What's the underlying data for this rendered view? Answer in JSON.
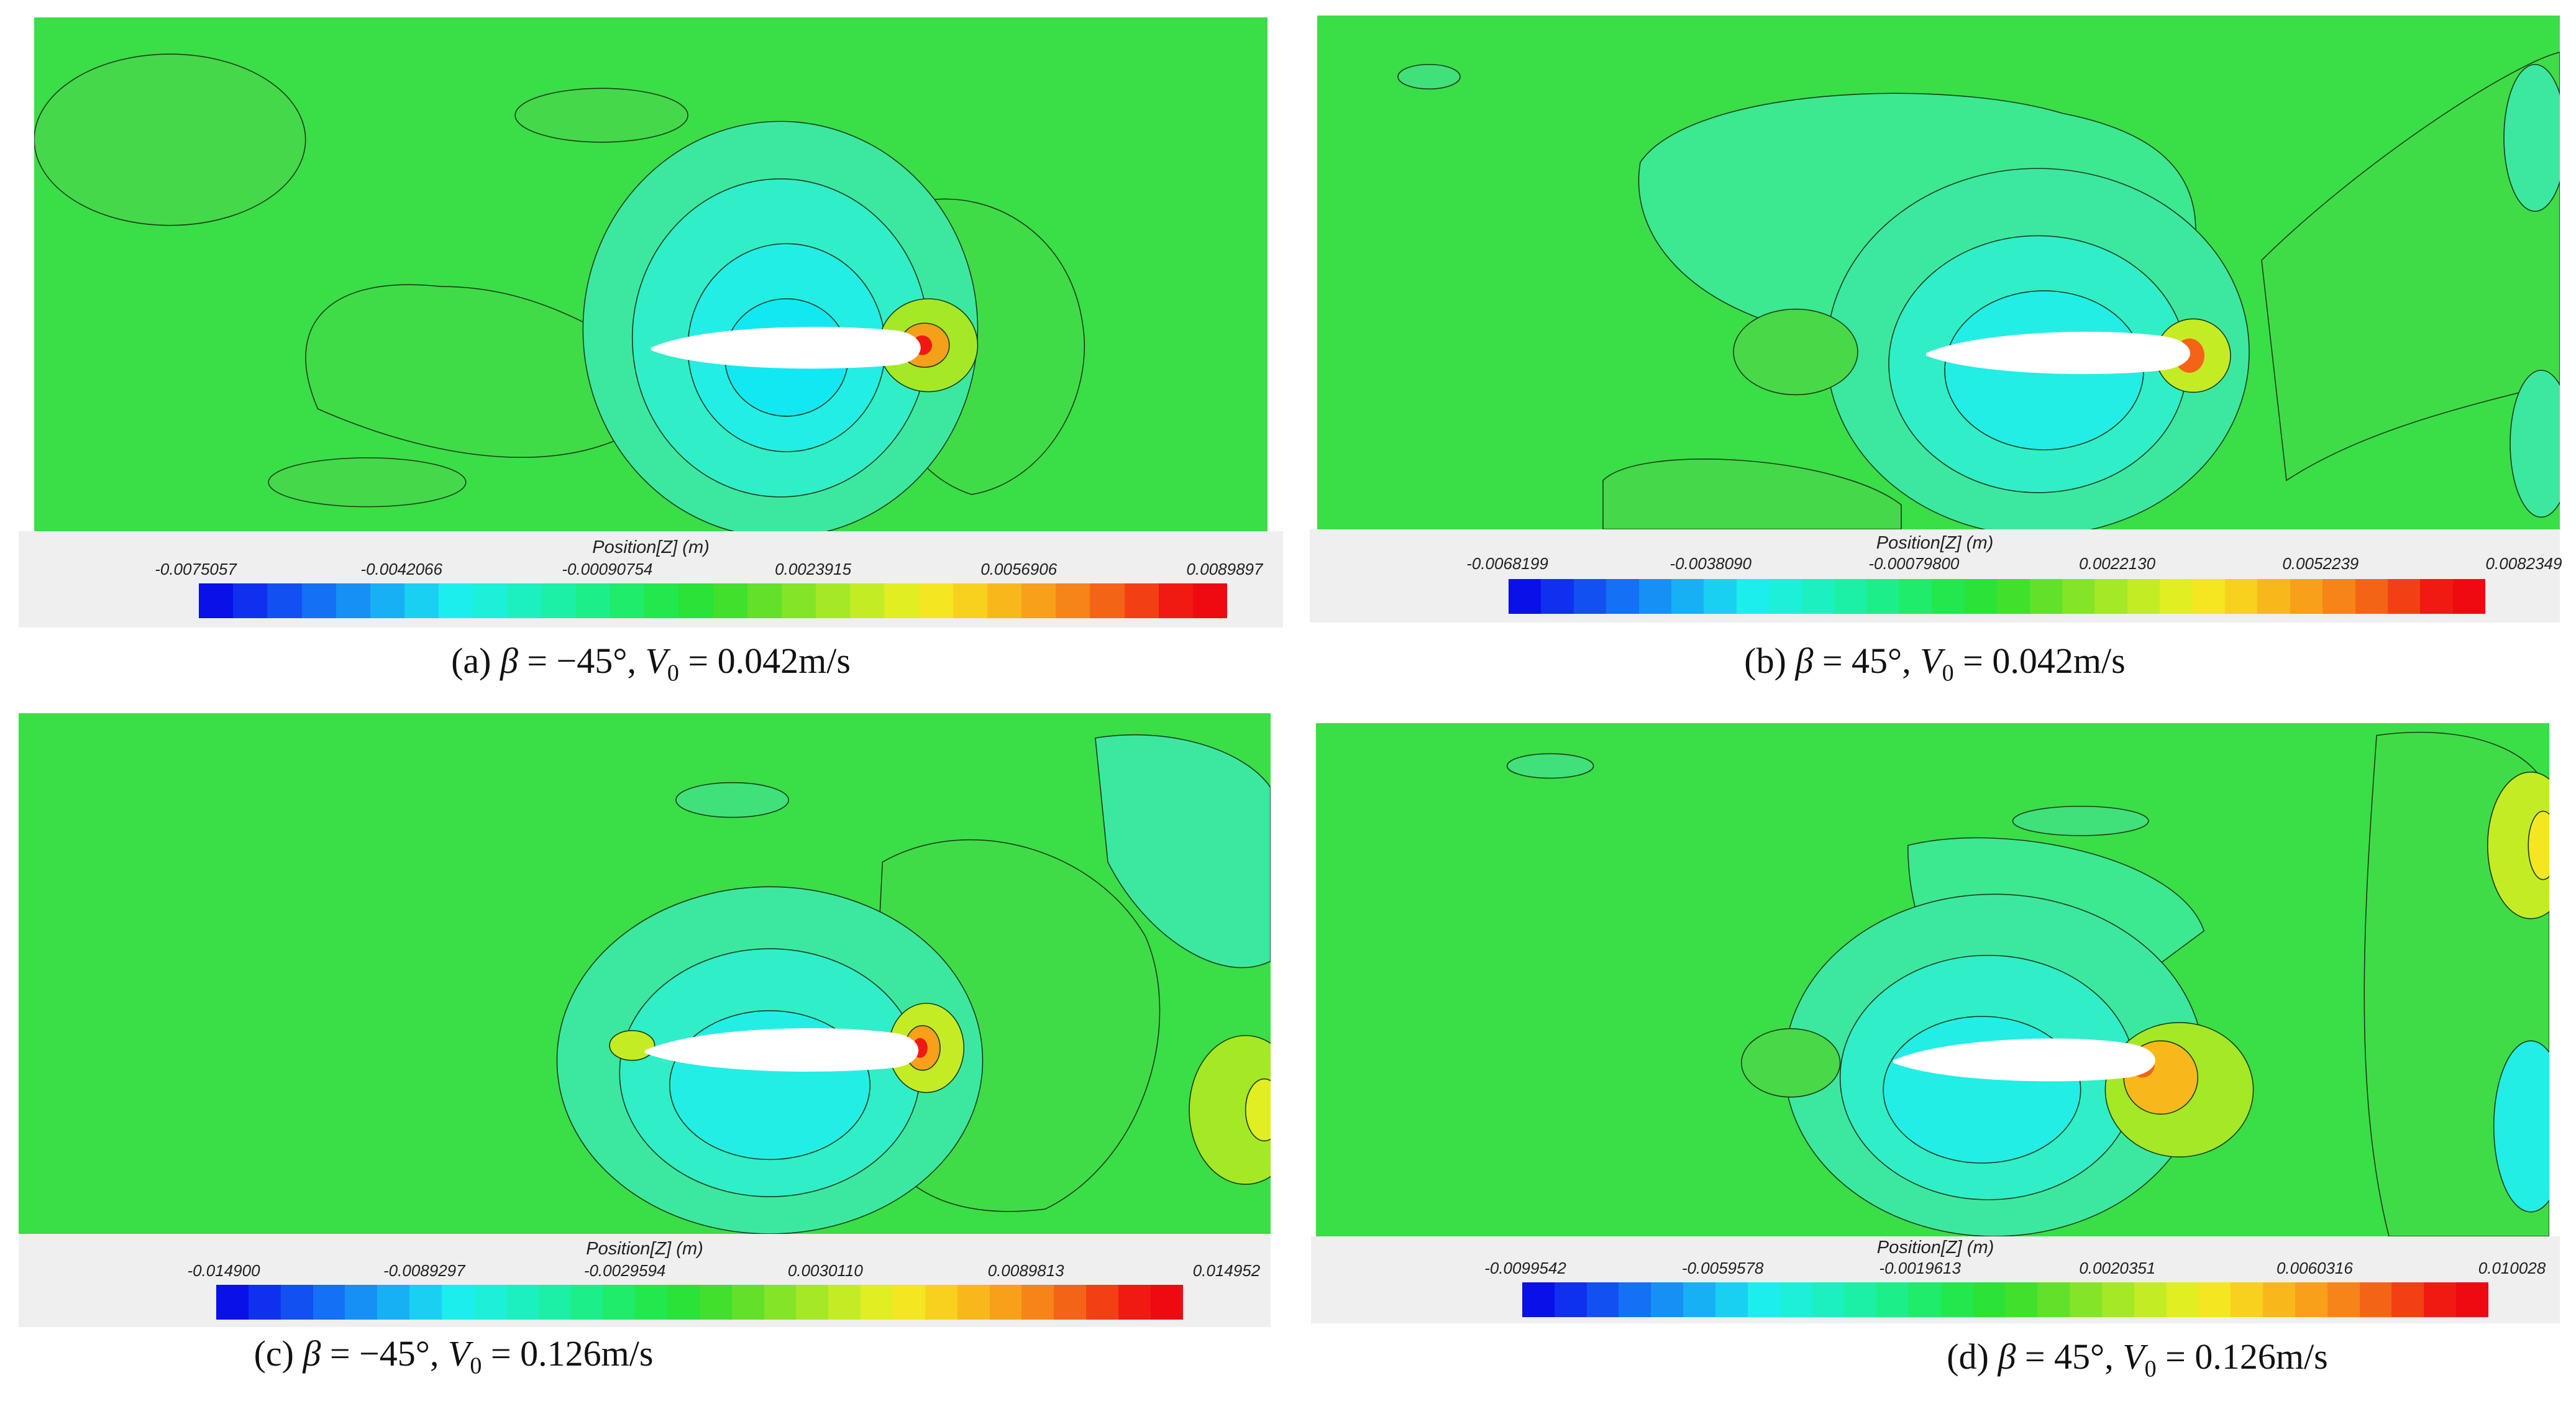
{
  "legend_title": "Position[Z] (m)",
  "colormap": [
    "#0a10e8",
    "#1030f0",
    "#1250f2",
    "#1470f4",
    "#1690f4",
    "#18b0f4",
    "#1ad0f2",
    "#1ceeee",
    "#1cf0d8",
    "#1cf0c0",
    "#1cf0a6",
    "#1cee8a",
    "#1eec6a",
    "#22e84e",
    "#2ae238",
    "#40e02c",
    "#62e02a",
    "#84e428",
    "#a4e826",
    "#c4ec24",
    "#e0ee22",
    "#f4e620",
    "#f8d01e",
    "#f8b81c",
    "#f8a01a",
    "#f68418",
    "#f46416",
    "#f24014",
    "#f01a12",
    "#ee0a10"
  ],
  "panels": [
    {
      "id": "a",
      "caption_label": "(a) ",
      "caption_beta": "β",
      "caption_beta_value": " = −45°, ",
      "caption_v": "V",
      "caption_v_sub": "0",
      "caption_v_value": " = 0.042m/s",
      "ticks": [
        "-0.0075057",
        "-0.0042066",
        "-0.00090754",
        "0.0023915",
        "0.0056906",
        "0.0089897"
      ]
    },
    {
      "id": "b",
      "caption_label": "(b) ",
      "caption_beta": "β",
      "caption_beta_value": " = 45°, ",
      "caption_v": "V",
      "caption_v_sub": "0",
      "caption_v_value": " = 0.042m/s",
      "ticks": [
        "-0.0068199",
        "-0.0038090",
        "-0.00079800",
        "0.0022130",
        "0.0052239",
        "0.0082349"
      ]
    },
    {
      "id": "c",
      "caption_label": "(c) ",
      "caption_beta": "β",
      "caption_beta_value": " = −45°, ",
      "caption_v": "V",
      "caption_v_sub": "0",
      "caption_v_value": " = 0.126m/s",
      "ticks": [
        "-0.014900",
        "-0.0089297",
        "-0.0029594",
        "0.0030110",
        "0.0089813",
        "0.014952"
      ]
    },
    {
      "id": "d",
      "caption_label": "(d) ",
      "caption_beta": "β",
      "caption_beta_value": " = 45°, ",
      "caption_v": "V",
      "caption_v_sub": "0",
      "caption_v_value": " = 0.126m/s",
      "ticks": [
        "-0.0099542",
        "-0.0059578",
        "-0.0019613",
        "0.0020351",
        "0.0060316",
        "0.010028"
      ]
    }
  ]
}
